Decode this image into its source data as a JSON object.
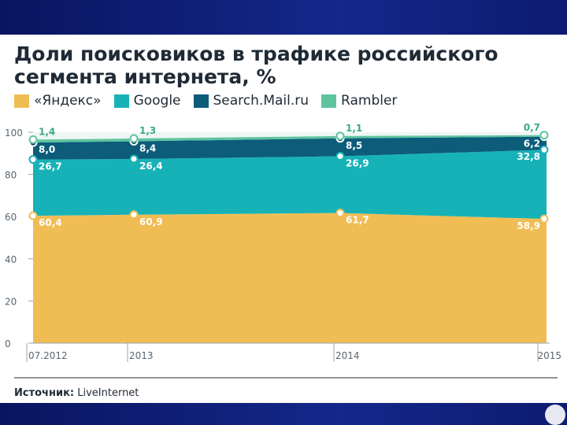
{
  "slide": {
    "title": "Доли поисковиков в трафике российского сегмента интернета, %",
    "source_label": "Источник:",
    "source_value": "LiveInternet"
  },
  "colors": {
    "yandex": "#f0bd55",
    "google": "#17b2b7",
    "mail": "#0c5c7a",
    "rambler": "#5ec4a0",
    "background_band": "#0a1a6b"
  },
  "chart_data": {
    "type": "area",
    "x": [
      "07.2012",
      "2013",
      "2014",
      "2015"
    ],
    "ylim": [
      0,
      100
    ],
    "yticks": [
      0,
      20,
      40,
      60,
      80,
      100
    ],
    "stacked": true,
    "legend_position": "top",
    "series": [
      {
        "name": "«Яндекс»",
        "key": "yandex",
        "values": [
          60.4,
          60.9,
          61.7,
          58.9
        ],
        "labels": [
          "60,4",
          "60,9",
          "61,7",
          "58,9"
        ]
      },
      {
        "name": "Google",
        "key": "google",
        "values": [
          26.7,
          26.4,
          26.9,
          32.8
        ],
        "labels": [
          "26,7",
          "26,4",
          "26,9",
          "32,8"
        ]
      },
      {
        "name": "Search.Mail.ru",
        "key": "mail",
        "values": [
          8.0,
          8.4,
          8.5,
          6.2
        ],
        "labels": [
          "8,0",
          "8,4",
          "8,5",
          "6,2"
        ]
      },
      {
        "name": "Rambler",
        "key": "rambler",
        "values": [
          1.4,
          1.3,
          1.1,
          0.7
        ],
        "labels": [
          "1,4",
          "1,3",
          "1,1",
          "0,7"
        ]
      }
    ]
  }
}
